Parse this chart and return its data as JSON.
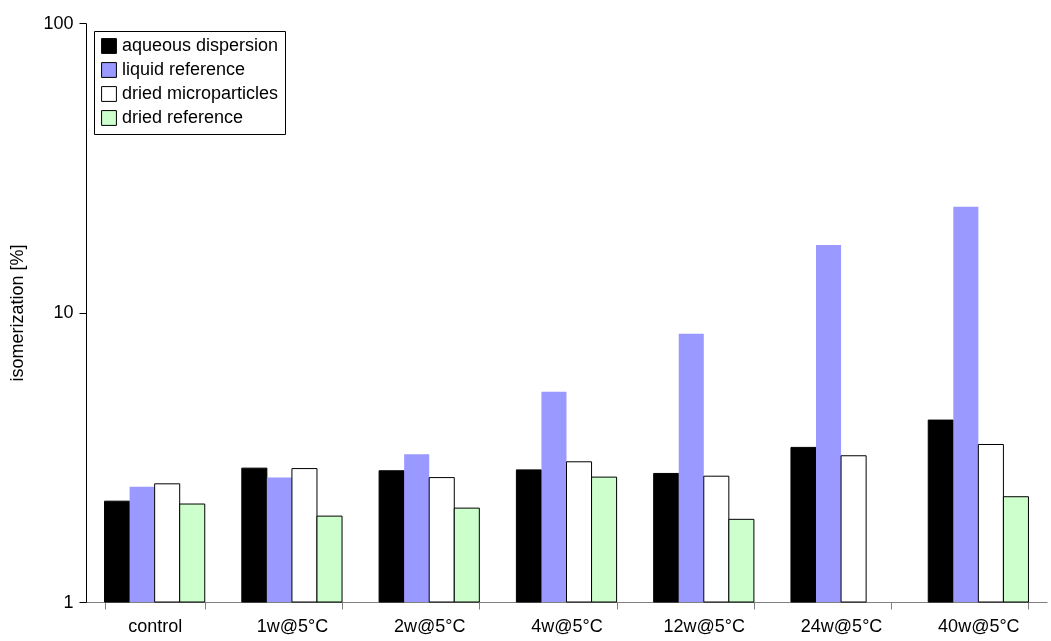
{
  "chart_data": {
    "type": "bar",
    "ylabel": "isomerization [%]",
    "categories": [
      "control",
      "1w@5°C",
      "2w@5°C",
      "4w@5°C",
      "12w@5°C",
      "24w@5°C",
      "40w@5°C"
    ],
    "series": [
      {
        "name": "aqueous dispersion",
        "color": "#000000",
        "values": [
          2.23,
          2.9,
          2.84,
          2.86,
          2.78,
          3.42,
          4.25
        ]
      },
      {
        "name": "liquid reference",
        "color": "#9999ff",
        "values": [
          2.5,
          2.69,
          3.24,
          5.32,
          8.45,
          17.1,
          23.2
        ]
      },
      {
        "name": "dried microparticles",
        "color": "#ffffff",
        "values": [
          2.56,
          2.89,
          2.69,
          3.05,
          2.72,
          3.2,
          3.5
        ]
      },
      {
        "name": "dried reference",
        "color": "#ccffcc",
        "values": [
          2.18,
          1.98,
          2.11,
          2.7,
          1.93,
          null,
          2.31
        ]
      }
    ],
    "log": true,
    "ylim": [
      1,
      100
    ],
    "yticks": [
      1,
      10,
      100
    ],
    "grid": false,
    "legend": "top left"
  }
}
